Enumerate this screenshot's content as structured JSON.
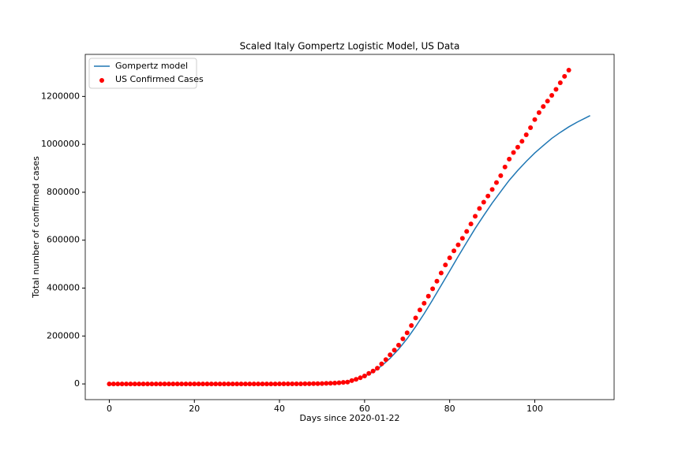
{
  "chart_data": {
    "type": "line",
    "title": "Scaled Italy Gompertz Logistic Model, US Data",
    "x_label": "Days since 2020-01-22",
    "y_label": "Total number of confirmed cases",
    "xlim": [
      -5.65,
      118.65
    ],
    "xticks": [
      0,
      20,
      40,
      60,
      80,
      100
    ],
    "ylim": [
      -65500,
      1375500
    ],
    "yticks": [
      0,
      200000,
      400000,
      600000,
      800000,
      1000000,
      1200000
    ],
    "grid": false,
    "legend": "upper left",
    "series": [
      {
        "name": "Gompertz model",
        "type": "line",
        "color": "#1f77b4",
        "x": [
          14,
          40,
          46,
          50,
          52,
          54,
          56,
          58,
          60,
          62,
          64,
          66,
          68,
          70,
          72,
          74,
          76,
          78,
          80,
          82,
          84,
          86,
          88,
          90,
          92,
          94,
          96,
          98,
          100,
          102,
          104,
          106,
          108,
          110,
          112,
          113
        ],
        "values": [
          0,
          1,
          124,
          1050,
          2500,
          5400,
          10700,
          19200,
          32200,
          50600,
          75400,
          106900,
          145000,
          189000,
          239000,
          293000,
          351000,
          411000,
          471000,
          532000,
          591000,
          649000,
          703000,
          755000,
          803000,
          850000,
          891000,
          929000,
          964000,
          995000,
          1025000,
          1050000,
          1073000,
          1093000,
          1111000,
          1120000
        ]
      },
      {
        "name": "US Confirmed Cases",
        "type": "scatter",
        "color": "#ff0000",
        "x": [
          0,
          1,
          2,
          3,
          4,
          5,
          6,
          7,
          8,
          9,
          10,
          11,
          12,
          13,
          14,
          15,
          16,
          17,
          18,
          19,
          20,
          21,
          22,
          23,
          24,
          25,
          26,
          27,
          28,
          29,
          30,
          31,
          32,
          33,
          34,
          35,
          36,
          37,
          38,
          39,
          40,
          41,
          42,
          43,
          44,
          45,
          46,
          47,
          48,
          49,
          50,
          51,
          52,
          53,
          54,
          55,
          56,
          57,
          58,
          59,
          60,
          61,
          62,
          63,
          64,
          65,
          66,
          67,
          68,
          69,
          70,
          71,
          72,
          73,
          74,
          75,
          76,
          77,
          78,
          79,
          80,
          81,
          82,
          83,
          84,
          85,
          86,
          87,
          88,
          89,
          90,
          91,
          92,
          93,
          94,
          95,
          96,
          97,
          98,
          99,
          100,
          101,
          102,
          103,
          104,
          105,
          106,
          107,
          108
        ],
        "values": [
          1,
          1,
          2,
          2,
          5,
          5,
          5,
          5,
          5,
          7,
          8,
          8,
          11,
          11,
          11,
          11,
          11,
          11,
          11,
          11,
          12,
          12,
          13,
          13,
          13,
          13,
          13,
          13,
          13,
          13,
          15,
          15,
          15,
          51,
          51,
          57,
          58,
          60,
          68,
          74,
          98,
          118,
          149,
          217,
          262,
          402,
          518,
          583,
          959,
          1281,
          1663,
          2179,
          2727,
          3499,
          4632,
          6421,
          7783,
          13747,
          19273,
          25600,
          33276,
          43847,
          53740,
          65778,
          83836,
          101657,
          121465,
          140909,
          161831,
          188172,
          213242,
          243622,
          275367,
          308650,
          336802,
          366317,
          397121,
          428654,
          462780,
          496535,
          526396,
          555313,
          580619,
          607670,
          636350,
          667592,
          699706,
          732197,
          758809,
          784326,
          811865,
          840351,
          869170,
          905358,
          938154,
          965783,
          988197,
          1012582,
          1039909,
          1069424,
          1103461,
          1132539,
          1158040,
          1180375,
          1204351,
          1229331,
          1257023,
          1283929,
          1309550
        ]
      }
    ]
  }
}
